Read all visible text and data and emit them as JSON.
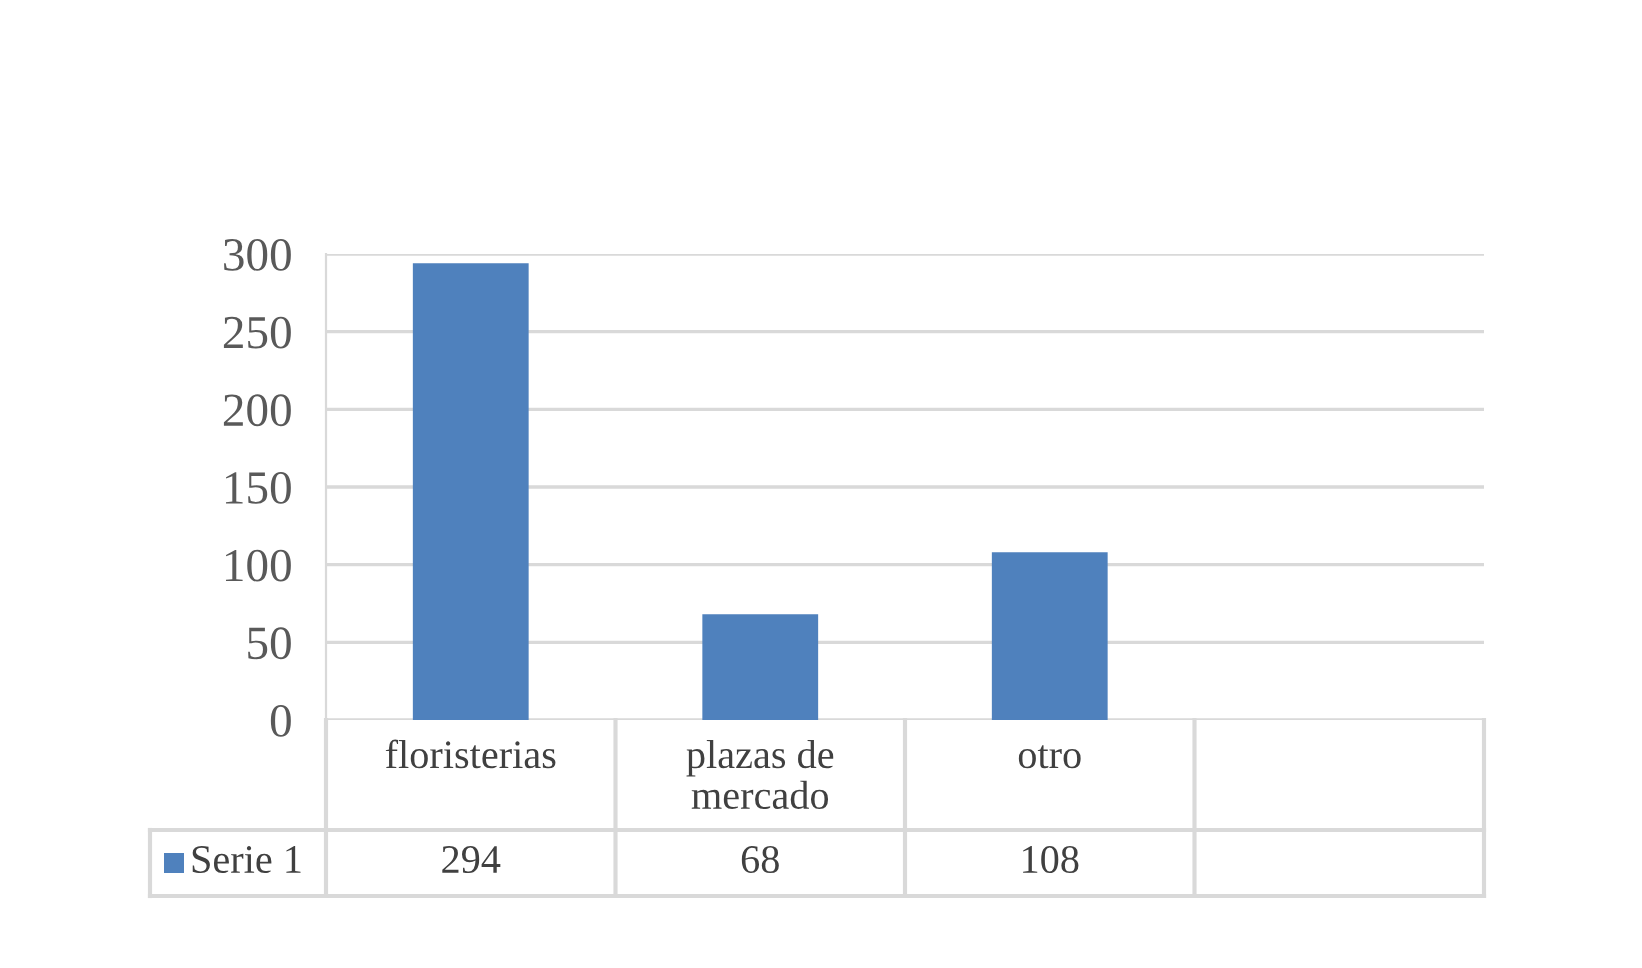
{
  "chart_data": {
    "type": "bar",
    "categories": [
      "floristerias",
      "plazas de mercado",
      "otro",
      null
    ],
    "series": [
      {
        "name": "Serie 1",
        "color": "#4f81bd",
        "values": [
          294,
          68,
          108,
          null
        ]
      }
    ],
    "ylim": [
      0,
      300
    ],
    "yticks": [
      0,
      50,
      100,
      150,
      200,
      250,
      300
    ],
    "grid": "y",
    "legend": "bottom",
    "data_labels": true
  }
}
